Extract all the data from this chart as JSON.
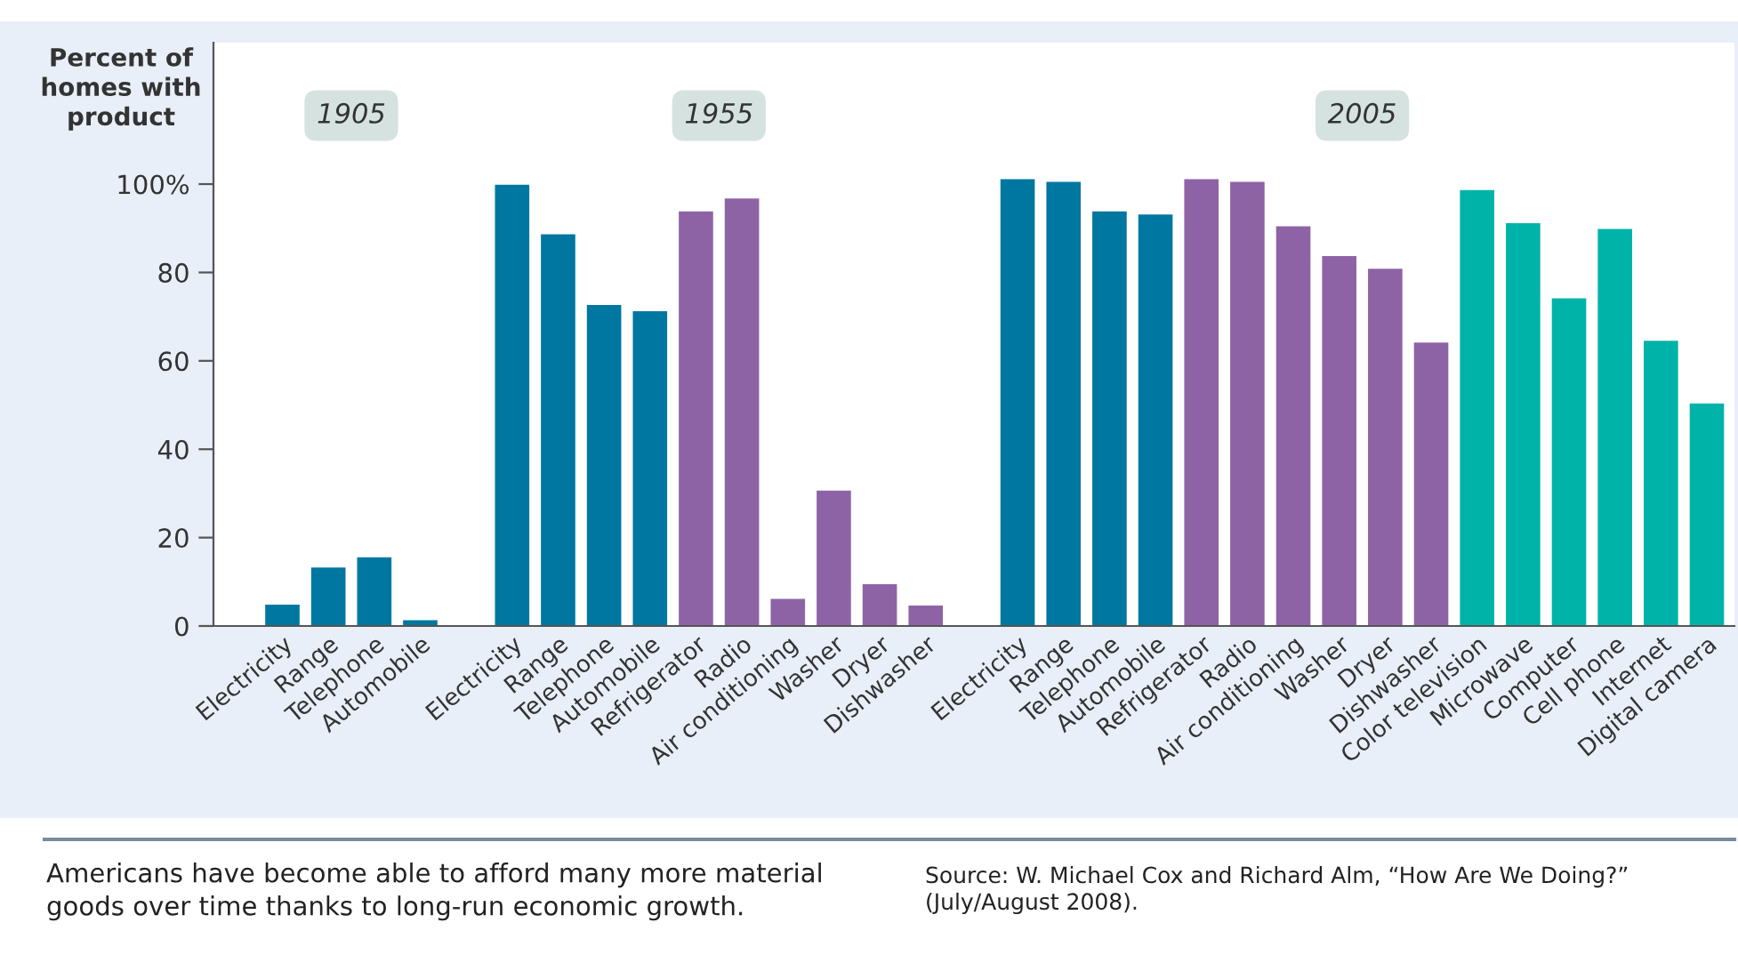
{
  "chart_data": {
    "type": "bar",
    "ylabel": "Percent of\nhomes with\nproduct",
    "categories": [
      "Electricity",
      "Range",
      "Telephone",
      "Automobile",
      null,
      "Electricity",
      "Range",
      "Telephone",
      "Automobile",
      "Refrigerator",
      "Radio",
      "Air conditioning",
      "Washer",
      "Dryer",
      "Dishwasher",
      null,
      "Electricity",
      "Range",
      "Telephone",
      "Automobile",
      "Refrigerator",
      "Radio",
      "Air conditioning",
      "Washer",
      "Dryer",
      "Dishwasher",
      "Color television",
      "Microwave",
      "Computer",
      "Cell phone",
      "Internet",
      "Digital camera"
    ],
    "values": [
      5,
      13.4,
      15.7,
      1.5,
      null,
      100,
      88.8,
      72.8,
      71.4,
      94,
      96.9,
      6.3,
      30.8,
      9.6,
      4.8,
      null,
      101.3,
      100.7,
      94,
      93.3,
      101.3,
      100.7,
      90.6,
      83.9,
      81,
      64.3,
      98.8,
      91.3,
      74.3,
      90,
      64.7,
      50.5
    ],
    "colors": [
      "#0077a0",
      "#0077a0",
      "#0077a0",
      "#0077a0",
      null,
      "#0077a0",
      "#0077a0",
      "#0077a0",
      "#0077a0",
      "#8e63a6",
      "#8e63a6",
      "#8e63a6",
      "#8e63a6",
      "#8e63a6",
      "#8e63a6",
      null,
      "#0077a0",
      "#0077a0",
      "#0077a0",
      "#0077a0",
      "#8e63a6",
      "#8e63a6",
      "#8e63a6",
      "#8e63a6",
      "#8e63a6",
      "#8e63a6",
      "#00b3a9",
      "#00b3a9",
      "#00b3a9",
      "#00b3a9",
      "#00b3a9",
      "#00b3a9"
    ],
    "ylim": [
      0,
      132
    ],
    "yticks": [
      0,
      20,
      40,
      60,
      80,
      {
        "value": 100,
        "label": "100%"
      }
    ],
    "grid": false,
    "annotations": [
      "1905",
      "1955",
      "2005",
      "Americans have become able to afford many more material goods over time thanks to long-run economic growth.",
      "Source: W. Michael Cox and Richard Alm, “How Are We Doing?” (July/August 2008)."
    ]
  }
}
